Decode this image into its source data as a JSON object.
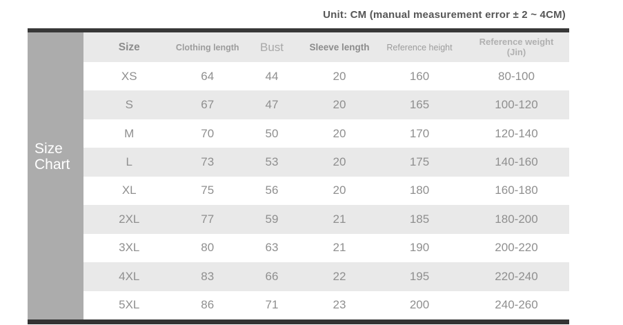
{
  "header": {
    "unit_note": "Unit: CM (manual measurement error ± 2 ~ 4CM)"
  },
  "side_label": "Size\nChart",
  "table": {
    "column_keys": [
      "size",
      "clothing_length",
      "bust",
      "sleeve_length",
      "reference_height",
      "reference_weight"
    ],
    "columns": [
      "Size",
      "Clothing length",
      "Bust",
      "Sleeve length",
      "Reference height",
      "Reference weight\n(Jin)"
    ],
    "rows": [
      [
        "XS",
        "64",
        "44",
        "20",
        "160",
        "80-100"
      ],
      [
        "S",
        "67",
        "47",
        "20",
        "165",
        "100-120"
      ],
      [
        "M",
        "70",
        "50",
        "20",
        "170",
        "120-140"
      ],
      [
        "L",
        "73",
        "53",
        "20",
        "175",
        "140-160"
      ],
      [
        "XL",
        "75",
        "56",
        "20",
        "180",
        "160-180"
      ],
      [
        "2XL",
        "77",
        "59",
        "21",
        "185",
        "180-200"
      ],
      [
        "3XL",
        "80",
        "63",
        "21",
        "190",
        "200-220"
      ],
      [
        "4XL",
        "83",
        "66",
        "22",
        "195",
        "220-240"
      ],
      [
        "5XL",
        "86",
        "71",
        "23",
        "200",
        "240-260"
      ]
    ]
  },
  "colors": {
    "side_band": "#acacac",
    "top_bar": "#383838",
    "bottom_bar": "#333333",
    "row_alt_bg": "#e9e9e9",
    "data_text": "#8f8f8f",
    "note_text": "#565656"
  },
  "chart_data": {
    "type": "table",
    "title": "Size Chart",
    "unit_note": "Unit: CM (manual measurement error ± 2 ~ 4CM)",
    "columns": [
      "Size",
      "Clothing length",
      "Bust",
      "Sleeve length",
      "Reference height",
      "Reference weight (Jin)"
    ],
    "rows": [
      {
        "size": "XS",
        "clothing_length": 64,
        "bust": 44,
        "sleeve_length": 20,
        "reference_height": 160,
        "reference_weight_jin": "80-100"
      },
      {
        "size": "S",
        "clothing_length": 67,
        "bust": 47,
        "sleeve_length": 20,
        "reference_height": 165,
        "reference_weight_jin": "100-120"
      },
      {
        "size": "M",
        "clothing_length": 70,
        "bust": 50,
        "sleeve_length": 20,
        "reference_height": 170,
        "reference_weight_jin": "120-140"
      },
      {
        "size": "L",
        "clothing_length": 73,
        "bust": 53,
        "sleeve_length": 20,
        "reference_height": 175,
        "reference_weight_jin": "140-160"
      },
      {
        "size": "XL",
        "clothing_length": 75,
        "bust": 56,
        "sleeve_length": 20,
        "reference_height": 180,
        "reference_weight_jin": "160-180"
      },
      {
        "size": "2XL",
        "clothing_length": 77,
        "bust": 59,
        "sleeve_length": 21,
        "reference_height": 185,
        "reference_weight_jin": "180-200"
      },
      {
        "size": "3XL",
        "clothing_length": 80,
        "bust": 63,
        "sleeve_length": 21,
        "reference_height": 190,
        "reference_weight_jin": "200-220"
      },
      {
        "size": "4XL",
        "clothing_length": 83,
        "bust": 66,
        "sleeve_length": 22,
        "reference_height": 195,
        "reference_weight_jin": "220-240"
      },
      {
        "size": "5XL",
        "clothing_length": 86,
        "bust": 71,
        "sleeve_length": 23,
        "reference_height": 200,
        "reference_weight_jin": "240-260"
      }
    ]
  }
}
